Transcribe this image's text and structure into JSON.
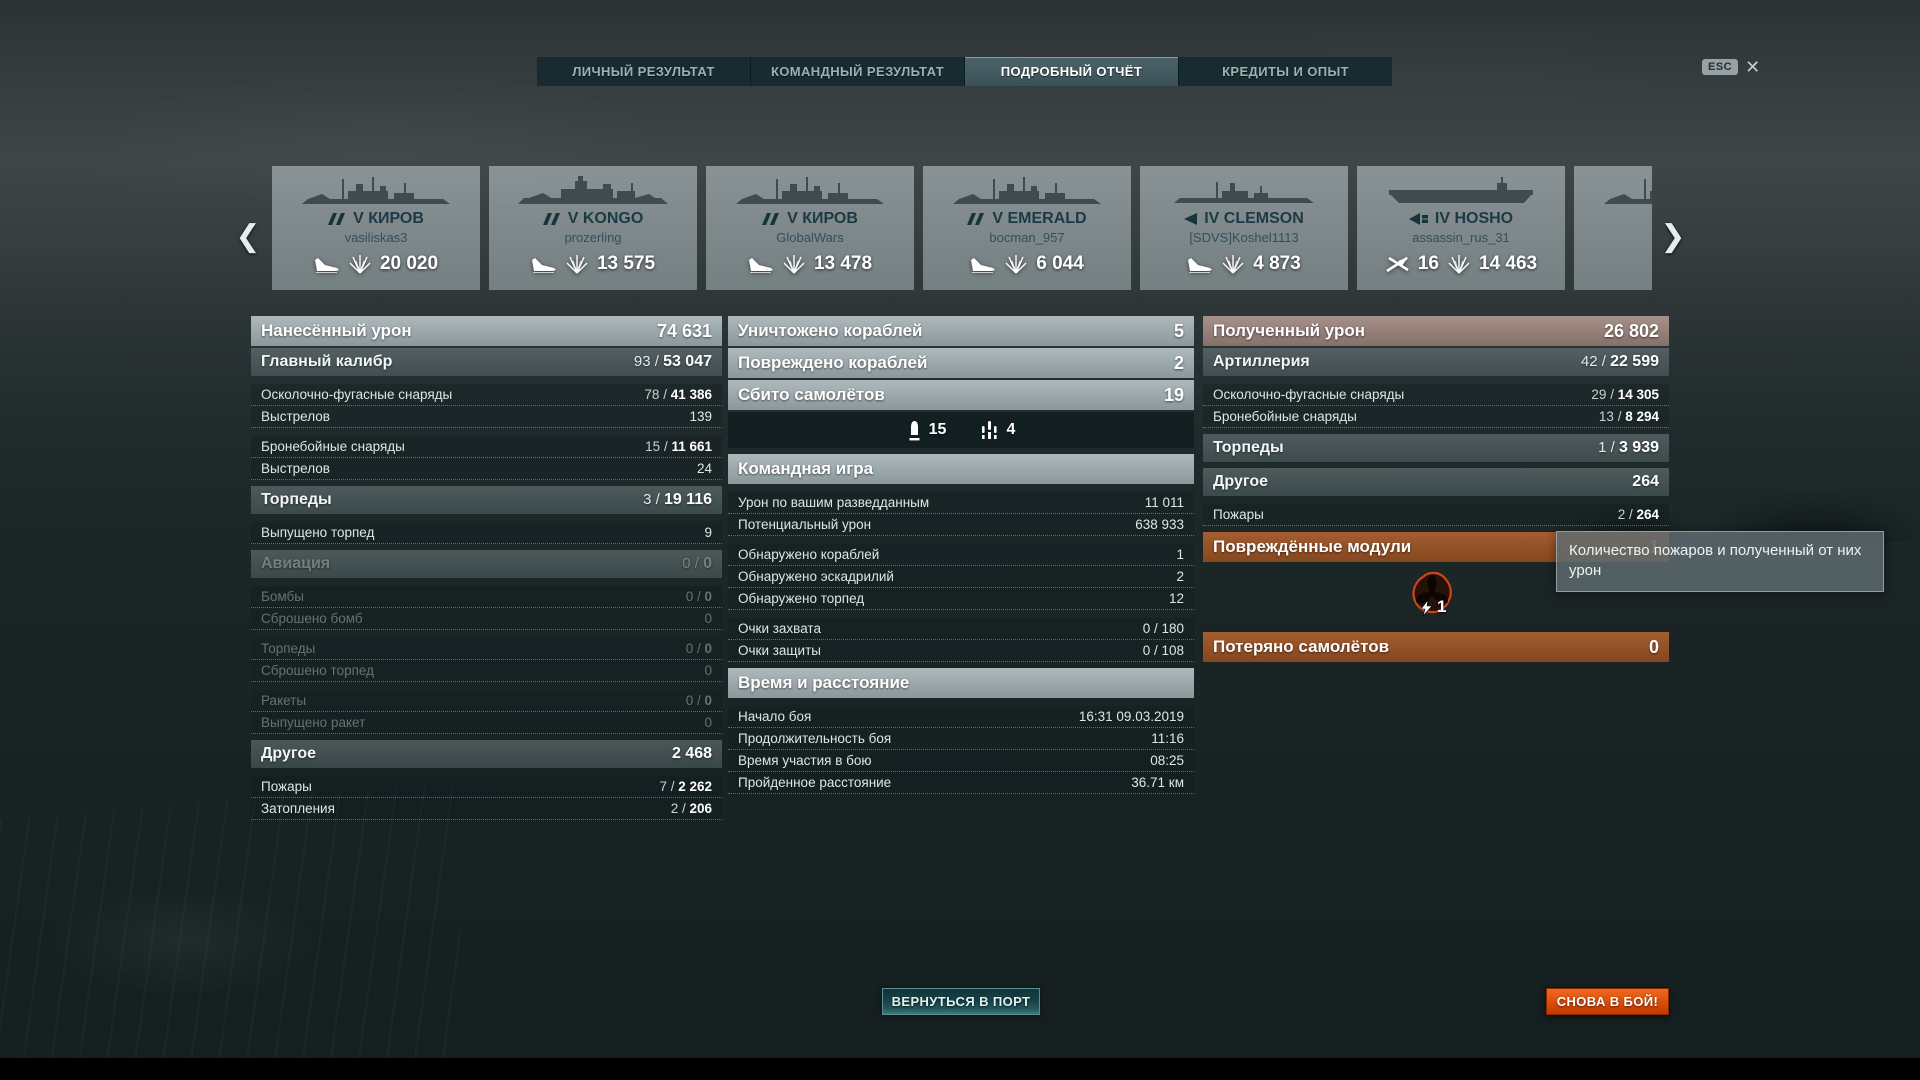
{
  "tabs": [
    {
      "label": "ЛИЧНЫЙ РЕЗУЛЬТАТ",
      "active": false
    },
    {
      "label": "КОМАНДНЫЙ РЕЗУЛЬТАТ",
      "active": false
    },
    {
      "label": "ПОДРОБНЫЙ ОТЧЁТ",
      "active": true
    },
    {
      "label": "КРЕДИТЫ И ОПЫТ",
      "active": false
    }
  ],
  "esc": {
    "key": "ESC",
    "close": "✕"
  },
  "carousel": {
    "prev": "❮",
    "next": "❯",
    "cards": [
      {
        "name": "V КИРОВ",
        "player": "vasiliskas3",
        "class": "cruiser",
        "sunk": true,
        "damage": "20 020"
      },
      {
        "name": "V KONGO",
        "player": "prozerling",
        "class": "battleship",
        "sunk": true,
        "damage": "13 575"
      },
      {
        "name": "V КИРОВ",
        "player": "GlobalWars",
        "class": "cruiser",
        "sunk": true,
        "damage": "13 478"
      },
      {
        "name": "V EMERALD",
        "player": "bocman_957",
        "class": "cruiser",
        "sunk": true,
        "damage": "6 044"
      },
      {
        "name": "IV CLEMSON",
        "player": "[SDVS]Koshel1113",
        "class": "destroyer",
        "sunk": true,
        "damage": "4 873"
      },
      {
        "name": "IV HOSHO",
        "player": "assassin_rus_31",
        "class": "carrier",
        "sunk": false,
        "planes": "16",
        "damage": "14 463"
      },
      {
        "name": "",
        "player": "",
        "class": "cruiser",
        "sunk": false,
        "damage": "",
        "partial": true
      }
    ]
  },
  "columns": {
    "left": {
      "rows": [
        {
          "type": "header",
          "label": "Нанесённый урон",
          "value": "74 631"
        },
        {
          "type": "sub",
          "label": "Главный калибр",
          "prefix": "93 / ",
          "value": "53 047"
        },
        {
          "type": "row",
          "label": "Осколочно-фугасные снаряды",
          "prefix": "78 / ",
          "value": "41 386",
          "bold": true,
          "group": true
        },
        {
          "type": "row",
          "label": "Выстрелов",
          "value": "139"
        },
        {
          "type": "row",
          "label": "Бронебойные снаряды",
          "prefix": "15 / ",
          "value": "11 661",
          "bold": true,
          "group": true
        },
        {
          "type": "row",
          "label": "Выстрелов",
          "value": "24"
        },
        {
          "type": "sub",
          "label": "Торпеды",
          "prefix": "3 / ",
          "value": "19 116"
        },
        {
          "type": "row",
          "label": "Выпущено торпед",
          "value": "9",
          "group": true
        },
        {
          "type": "sub",
          "label": "Авиация",
          "prefix": "0 / ",
          "value": "0",
          "dim": true
        },
        {
          "type": "row",
          "label": "Бомбы",
          "prefix": "0 / ",
          "value": "0",
          "bold": true,
          "dim": true,
          "group": true
        },
        {
          "type": "row",
          "label": "Сброшено бомб",
          "value": "0",
          "dim": true
        },
        {
          "type": "row",
          "label": "Торпеды",
          "prefix": "0 / ",
          "value": "0",
          "bold": true,
          "dim": true,
          "group": true
        },
        {
          "type": "row",
          "label": "Сброшено торпед",
          "value": "0",
          "dim": true
        },
        {
          "type": "row",
          "label": "Ракеты",
          "prefix": "0 / ",
          "value": "0",
          "bold": true,
          "dim": true,
          "group": true
        },
        {
          "type": "row",
          "label": "Выпущено ракет",
          "value": "0",
          "dim": true
        },
        {
          "type": "sub",
          "label": "Другое",
          "value": "2 468"
        },
        {
          "type": "row",
          "label": "Пожары",
          "prefix": "7 / ",
          "value": "2 262",
          "bold": true,
          "group": true
        },
        {
          "type": "row",
          "label": "Затопления",
          "prefix": "2 / ",
          "value": "206",
          "bold": true
        }
      ]
    },
    "middle": {
      "rows": [
        {
          "type": "header",
          "label": "Уничтожено кораблей",
          "value": "5"
        },
        {
          "type": "header",
          "label": "Повреждено кораблей",
          "value": "2"
        },
        {
          "type": "header",
          "label": "Сбито самолётов",
          "value": "19"
        },
        {
          "type": "iconband",
          "items": [
            {
              "icon": "aa-gun-shell-icon",
              "value": "15"
            },
            {
              "icon": "aa-tracers-icon",
              "value": "4"
            }
          ]
        },
        {
          "type": "header",
          "label": "Командная игра"
        },
        {
          "type": "row",
          "label": "Урон по вашим разведданным",
          "value": "11 011",
          "group": true
        },
        {
          "type": "row",
          "label": "Потенциальный урон",
          "value": "638 933"
        },
        {
          "type": "row",
          "label": "Обнаружено кораблей",
          "value": "1",
          "group": true
        },
        {
          "type": "row",
          "label": "Обнаружено эскадрилий",
          "value": "2"
        },
        {
          "type": "row",
          "label": "Обнаружено торпед",
          "value": "12"
        },
        {
          "type": "row",
          "label": "Очки захвата",
          "value": "0 / 180",
          "group": true
        },
        {
          "type": "row",
          "label": "Очки защиты",
          "value": "0 / 108"
        },
        {
          "type": "header",
          "label": "Время и расстояние"
        },
        {
          "type": "row",
          "label": "Начало боя",
          "value": "16:31 09.03.2019",
          "group": true
        },
        {
          "type": "row",
          "label": "Продолжительность боя",
          "value": "11:16"
        },
        {
          "type": "row",
          "label": "Время участия в бою",
          "value": "08:25"
        },
        {
          "type": "row",
          "label": "Пройденное расстояние",
          "value": "36.71 км"
        }
      ]
    },
    "right": {
      "rows": [
        {
          "type": "header",
          "variant": "brown",
          "label": "Полученный урон",
          "value": "26 802"
        },
        {
          "type": "sub",
          "label": "Артиллерия",
          "prefix": "42 / ",
          "value": "22 599"
        },
        {
          "type": "row",
          "label": "Осколочно-фугасные снаряды",
          "prefix": "29 / ",
          "value": "14 305",
          "bold": true,
          "group": true
        },
        {
          "type": "row",
          "label": "Бронебойные снаряды",
          "prefix": "13 / ",
          "value": "8 294",
          "bold": true
        },
        {
          "type": "sub",
          "label": "Торпеды",
          "prefix": "1 / ",
          "value": "3 939"
        },
        {
          "type": "sub",
          "label": "Другое",
          "value": "264"
        },
        {
          "type": "row",
          "label": "Пожары",
          "prefix": "2 / ",
          "value": "264",
          "bold": true,
          "group": true
        },
        {
          "type": "header",
          "variant": "orange",
          "label": "Повреждённые модули",
          "value": "1",
          "valueDim": true
        },
        {
          "type": "modulebadge",
          "icon": "engine-module-icon",
          "count": "1"
        },
        {
          "type": "header",
          "variant": "orange",
          "label": "Потеряно самолётов",
          "value": "0"
        }
      ]
    }
  },
  "tooltip": {
    "text": "Количество пожаров и полученный от них урон"
  },
  "buttons": {
    "return_port": "ВЕРНУТЬСЯ В ПОРТ",
    "battle_again": "СНОВА В БОЙ!"
  },
  "colors": {
    "tab_active_bg": "#42595f",
    "header_gray": "#9aa8ac",
    "header_brown": "#96817a",
    "header_orange": "#9a5830",
    "button_orange": "#d94c0b",
    "button_teal": "#1f4449",
    "module_outline_red": "#cf4517"
  }
}
